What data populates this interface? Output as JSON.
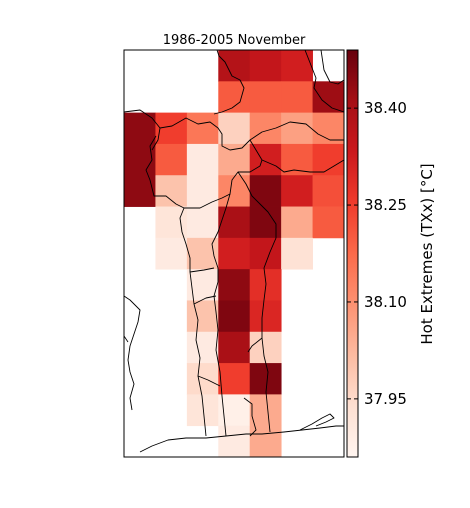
{
  "map": {
    "title": "1986-2005 November",
    "grid": {
      "rows": 13,
      "cols": 7,
      "values": [
        [
          null,
          null,
          null,
          38.38,
          38.35,
          38.32,
          null
        ],
        [
          null,
          null,
          null,
          38.2,
          38.2,
          38.2,
          38.42
        ],
        [
          38.44,
          38.25,
          38.15,
          37.97,
          38.12,
          38.07,
          38.12
        ],
        [
          38.44,
          38.2,
          37.9,
          38.05,
          38.32,
          38.2,
          38.25
        ],
        [
          38.44,
          38.0,
          37.9,
          38.12,
          38.46,
          38.32,
          38.22
        ],
        [
          null,
          37.92,
          37.9,
          38.4,
          38.46,
          38.05,
          38.2
        ],
        [
          null,
          37.9,
          38.0,
          38.32,
          38.35,
          37.93,
          null
        ],
        [
          null,
          null,
          37.9,
          38.44,
          38.28,
          null,
          null
        ],
        [
          null,
          null,
          38.0,
          38.46,
          38.3,
          null,
          null
        ],
        [
          null,
          null,
          37.9,
          38.4,
          37.97,
          null,
          null
        ],
        [
          null,
          null,
          37.95,
          38.25,
          38.46,
          null,
          null
        ],
        [
          null,
          null,
          37.92,
          37.88,
          38.05,
          null,
          null
        ],
        [
          null,
          null,
          null,
          37.9,
          38.05,
          null,
          null
        ]
      ]
    }
  },
  "colorbar": {
    "label": "Hot Extremes (TXx) [°C]",
    "vmin": 37.86,
    "vmax": 38.49,
    "ticks": [
      37.95,
      38.1,
      38.25,
      38.4
    ],
    "tick_labels": [
      "37.95",
      "38.10",
      "38.25",
      "38.40"
    ],
    "colormap": "Reds",
    "colors": [
      "#fff5f0",
      "#fee0d2",
      "#fcbba1",
      "#fc9272",
      "#fb6a4a",
      "#ef3b2c",
      "#cb181d",
      "#a50f15",
      "#67000d"
    ]
  }
}
